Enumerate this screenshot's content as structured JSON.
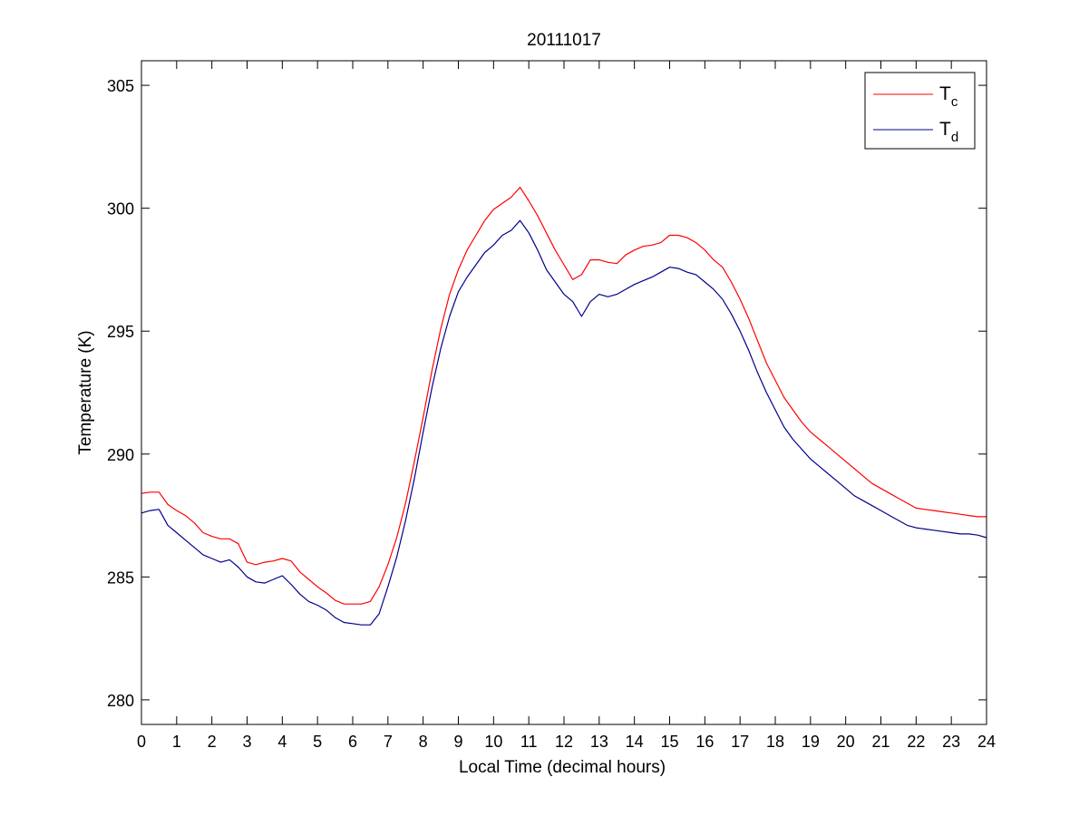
{
  "chart_data": {
    "type": "line",
    "title": "20111017",
    "xlabel": "Local Time (decimal hours)",
    "ylabel": "Temperature (K)",
    "xlim": [
      0,
      24
    ],
    "ylim": [
      279,
      306
    ],
    "xticks": [
      0,
      1,
      2,
      3,
      4,
      5,
      6,
      7,
      8,
      9,
      10,
      11,
      12,
      13,
      14,
      15,
      16,
      17,
      18,
      19,
      20,
      21,
      22,
      23,
      24
    ],
    "yticks": [
      280,
      285,
      290,
      295,
      300,
      305
    ],
    "grid": false,
    "legend_position": "top-right",
    "series": [
      {
        "name": "T",
        "subscript": "c",
        "color": "#ff0000",
        "x": [
          0,
          0.25,
          0.5,
          0.75,
          1,
          1.25,
          1.5,
          1.75,
          2,
          2.25,
          2.5,
          2.75,
          3,
          3.25,
          3.5,
          3.75,
          4,
          4.25,
          4.5,
          4.75,
          5,
          5.25,
          5.5,
          5.75,
          6,
          6.25,
          6.5,
          6.75,
          7,
          7.25,
          7.5,
          7.75,
          8,
          8.25,
          8.5,
          8.75,
          9,
          9.25,
          9.5,
          9.75,
          10,
          10.25,
          10.5,
          10.75,
          11,
          11.25,
          11.5,
          11.75,
          12,
          12.25,
          12.5,
          12.75,
          13,
          13.25,
          13.5,
          13.75,
          14,
          14.25,
          14.5,
          14.75,
          15,
          15.25,
          15.5,
          15.75,
          16,
          16.25,
          16.5,
          16.75,
          17,
          17.25,
          17.5,
          17.75,
          18,
          18.25,
          18.5,
          18.75,
          19,
          19.25,
          19.5,
          19.75,
          20,
          20.25,
          20.5,
          20.75,
          21,
          21.25,
          21.5,
          21.75,
          22,
          22.25,
          22.5,
          22.75,
          23,
          23.25,
          23.5,
          23.75,
          24
        ],
        "values": [
          288.4,
          288.45,
          288.45,
          287.95,
          287.7,
          287.5,
          287.2,
          286.8,
          286.65,
          286.55,
          286.55,
          286.35,
          285.6,
          285.5,
          285.6,
          285.65,
          285.75,
          285.65,
          285.2,
          284.9,
          284.6,
          284.35,
          284.05,
          283.9,
          283.9,
          283.9,
          284.0,
          284.6,
          285.5,
          286.6,
          288.0,
          289.7,
          291.5,
          293.4,
          295.1,
          296.5,
          297.5,
          298.3,
          298.9,
          299.5,
          299.95,
          300.2,
          300.45,
          300.85,
          300.3,
          299.7,
          299.0,
          298.3,
          297.7,
          297.1,
          297.3,
          297.9,
          297.9,
          297.8,
          297.75,
          298.1,
          298.3,
          298.45,
          298.5,
          298.6,
          298.9,
          298.9,
          298.8,
          298.6,
          298.3,
          297.9,
          297.6,
          297.0,
          296.3,
          295.5,
          294.6,
          293.7,
          293.0,
          292.3,
          291.8,
          291.3,
          290.9,
          290.6,
          290.3,
          290.0,
          289.7,
          289.4,
          289.1,
          288.8,
          288.6,
          288.4,
          288.2,
          288.0,
          287.8,
          287.75,
          287.7,
          287.65,
          287.6,
          287.55,
          287.5,
          287.45,
          287.45
        ]
      },
      {
        "name": "T",
        "subscript": "d",
        "color": "#00008b",
        "x": [
          0,
          0.25,
          0.5,
          0.75,
          1,
          1.25,
          1.5,
          1.75,
          2,
          2.25,
          2.5,
          2.75,
          3,
          3.25,
          3.5,
          3.75,
          4,
          4.25,
          4.5,
          4.75,
          5,
          5.25,
          5.5,
          5.75,
          6,
          6.25,
          6.5,
          6.75,
          7,
          7.25,
          7.5,
          7.75,
          8,
          8.25,
          8.5,
          8.75,
          9,
          9.25,
          9.5,
          9.75,
          10,
          10.25,
          10.5,
          10.75,
          11,
          11.25,
          11.5,
          11.75,
          12,
          12.25,
          12.5,
          12.75,
          13,
          13.25,
          13.5,
          13.75,
          14,
          14.25,
          14.5,
          14.75,
          15,
          15.25,
          15.5,
          15.75,
          16,
          16.25,
          16.5,
          16.75,
          17,
          17.25,
          17.5,
          17.75,
          18,
          18.25,
          18.5,
          18.75,
          19,
          19.25,
          19.5,
          19.75,
          20,
          20.25,
          20.5,
          20.75,
          21,
          21.25,
          21.5,
          21.75,
          22,
          22.25,
          22.5,
          22.75,
          23,
          23.25,
          23.5,
          23.75,
          24
        ],
        "values": [
          287.6,
          287.7,
          287.75,
          287.1,
          286.8,
          286.5,
          286.2,
          285.9,
          285.75,
          285.6,
          285.7,
          285.4,
          285.0,
          284.8,
          284.75,
          284.9,
          285.05,
          284.7,
          284.3,
          284.0,
          283.85,
          283.65,
          283.35,
          283.15,
          283.1,
          283.05,
          283.05,
          283.5,
          284.6,
          285.8,
          287.3,
          289.0,
          290.9,
          292.7,
          294.3,
          295.6,
          296.6,
          297.2,
          297.7,
          298.2,
          298.5,
          298.9,
          299.1,
          299.5,
          299.0,
          298.3,
          297.5,
          297.0,
          296.5,
          296.2,
          295.6,
          296.2,
          296.5,
          296.4,
          296.5,
          296.7,
          296.9,
          297.05,
          297.2,
          297.4,
          297.6,
          297.55,
          297.4,
          297.3,
          297.0,
          296.7,
          296.3,
          295.7,
          295.0,
          294.2,
          293.3,
          292.5,
          291.8,
          291.1,
          290.6,
          290.2,
          289.8,
          289.5,
          289.2,
          288.9,
          288.6,
          288.3,
          288.1,
          287.9,
          287.7,
          287.5,
          287.3,
          287.1,
          287.0,
          286.95,
          286.9,
          286.85,
          286.8,
          286.75,
          286.75,
          286.7,
          286.6
        ]
      }
    ]
  }
}
